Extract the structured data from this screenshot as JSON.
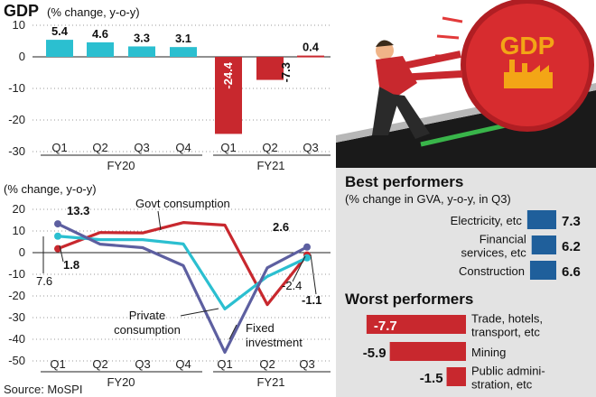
{
  "source": "Source: MoSPI",
  "illustration": {
    "label": "GDP"
  },
  "chart_data": [
    {
      "type": "bar",
      "title": "GDP",
      "subtitle": "(% change, y-o-y)",
      "categories": [
        "Q1",
        "Q2",
        "Q3",
        "Q4",
        "Q1",
        "Q2",
        "Q3"
      ],
      "groups": [
        {
          "label": "FY20",
          "categories": [
            "Q1",
            "Q2",
            "Q3",
            "Q4"
          ]
        },
        {
          "label": "FY21",
          "categories": [
            "Q1",
            "Q2",
            "Q3"
          ]
        }
      ],
      "values": [
        5.4,
        4.6,
        3.3,
        3.1,
        -24.4,
        -7.3,
        0.4
      ],
      "value_labels": [
        "5.4",
        "4.6",
        "3.3",
        "3.1",
        "-24.4",
        "-7.3",
        "0.4"
      ],
      "ylim": [
        -30,
        10
      ],
      "yticks": [
        10,
        0,
        -10,
        -20,
        -30
      ],
      "colors": {
        "fy20": "#2bbfd0",
        "fy21": "#c8282e"
      }
    },
    {
      "type": "line",
      "title": "(% change, y-o-y)",
      "categories": [
        "Q1",
        "Q2",
        "Q3",
        "Q4",
        "Q1",
        "Q2",
        "Q3"
      ],
      "groups": [
        {
          "label": "FY20",
          "categories": [
            "Q1",
            "Q2",
            "Q3",
            "Q4"
          ]
        },
        {
          "label": "FY21",
          "categories": [
            "Q1",
            "Q2",
            "Q3"
          ]
        }
      ],
      "ylim": [
        -50,
        20
      ],
      "yticks": [
        20,
        10,
        0,
        -10,
        -20,
        -30,
        -40,
        -50
      ],
      "series": [
        {
          "name": "Govt consumption",
          "color": "#c8282e",
          "values": [
            1.8,
            9.3,
            9.1,
            13.9,
            12.7,
            -24.0,
            -1.1
          ]
        },
        {
          "name": "Private consumption",
          "color": "#2bbfd0",
          "values": [
            7.6,
            6.0,
            6.0,
            4.0,
            -26.0,
            -11.0,
            -2.4
          ]
        },
        {
          "name": "Fixed investment",
          "color": "#5d5fa0",
          "values": [
            13.3,
            3.9,
            2.3,
            -6.0,
            -46.0,
            -7.0,
            2.6
          ]
        }
      ],
      "annotations": [
        "13.3",
        "1.8",
        "7.6",
        "2.6",
        "-2.4",
        "-1.1"
      ],
      "series_labels": [
        "Govt consumption",
        "Private consumption",
        "Fixed investment"
      ]
    },
    {
      "type": "bar",
      "orientation": "horizontal",
      "title": "Best performers",
      "subtitle": "(% change in GVA, y-o-y, in Q3)",
      "categories": [
        "Electricity, etc",
        "Financial services, etc",
        "Construction"
      ],
      "labels": [
        [
          "Electricity, etc"
        ],
        [
          "Financial",
          "services, etc"
        ],
        [
          "Construction"
        ]
      ],
      "values": [
        7.3,
        6.2,
        6.6
      ],
      "value_labels": [
        "7.3",
        "6.2",
        "6.6"
      ],
      "color": "#1f5f9b"
    },
    {
      "type": "bar",
      "orientation": "horizontal",
      "title": "Worst performers",
      "categories": [
        "Trade, hotels, transport, etc",
        "Mining",
        "Public administration, etc"
      ],
      "labels": [
        [
          "Trade, hotels,",
          "transport, etc"
        ],
        [
          "Mining"
        ],
        [
          "Public admini-",
          "stration, etc"
        ]
      ],
      "values": [
        -7.7,
        -5.9,
        -1.5
      ],
      "value_labels": [
        "-7.7",
        "-5.9",
        "-1.5"
      ],
      "color": "#c8282e"
    }
  ]
}
